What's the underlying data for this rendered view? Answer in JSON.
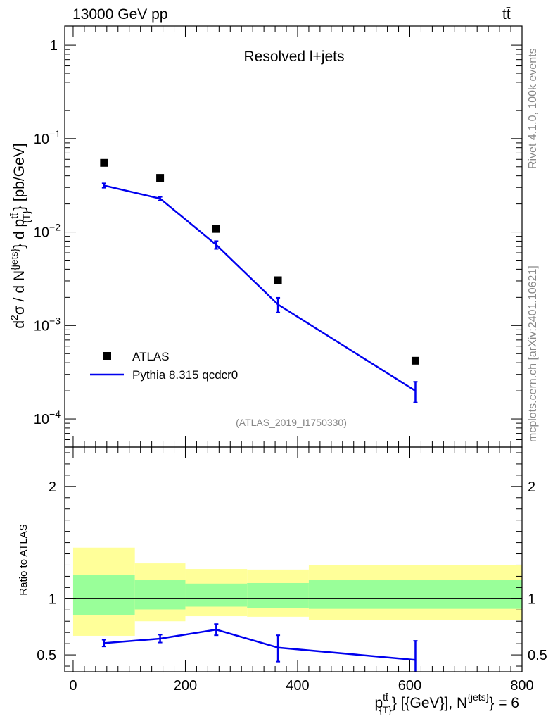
{
  "header": {
    "energy_label": "13000 GeV pp",
    "process_label": "tt̄"
  },
  "side_labels": {
    "rivet": "Rivet 4.1.0,  100k events",
    "mcplots": "mcplots.cern.ch [arXiv:2401.10621]"
  },
  "colors": {
    "mc": "#0000ee",
    "band_inner": "#99ff99",
    "band_outer": "#ffff99",
    "data": "#000000"
  },
  "chart_data": [
    {
      "type": "scatter",
      "panel": "main",
      "title": "Resolved l+jets",
      "analysis_id": "(ATLAS_2019_I1750330)",
      "ylabel": "d²σ / d N^{jets} d p_{T}^{tt̄} [pb/GeV]",
      "yscale": "log",
      "ylim": [
        5e-05,
        1.6
      ],
      "xlim": [
        -15,
        800
      ],
      "ytick_labels": [
        {
          "value": 1,
          "base": "1",
          "exp": ""
        },
        {
          "value": 0.1,
          "base": "10",
          "exp": "−1"
        },
        {
          "value": 0.01,
          "base": "10",
          "exp": "−2"
        },
        {
          "value": 0.001,
          "base": "10",
          "exp": "−3"
        },
        {
          "value": 0.0001,
          "base": "10",
          "exp": "−4"
        }
      ],
      "legend": {
        "position": "bottom-left",
        "entries": [
          {
            "label": "ATLAS",
            "style": "marker"
          },
          {
            "label": "Pythia 8.315 qcdcr0",
            "style": "line"
          }
        ]
      },
      "series": [
        {
          "name": "ATLAS",
          "x": [
            55,
            155,
            255,
            365,
            610
          ],
          "values": [
            0.055,
            0.038,
            0.0108,
            0.00305,
            0.00042
          ]
        },
        {
          "name": "Pythia 8.315 qcdcr0",
          "x": [
            55,
            155,
            255,
            365,
            610
          ],
          "values": [
            0.0315,
            0.0228,
            0.0073,
            0.00168,
            0.0002
          ],
          "err_low": [
            0.0298,
            0.0218,
            0.0066,
            0.00138,
            0.00015
          ],
          "err_high": [
            0.0332,
            0.0238,
            0.008,
            0.00198,
            0.00025
          ]
        }
      ]
    },
    {
      "type": "line",
      "panel": "ratio",
      "ylabel": "Ratio to ATLAS",
      "xlabel": "p_{T}^{tt̄} [{GeV}], N^{jets} = 6",
      "ylim": [
        0.35,
        2.35
      ],
      "xlim": [
        -15,
        800
      ],
      "xticks": [
        0,
        200,
        400,
        600,
        800
      ],
      "xtick_labels": [
        "0",
        "200",
        "400",
        "600",
        "800"
      ],
      "yticks": [
        0.5,
        1,
        2
      ],
      "ytick_labels": [
        "0.5",
        "1",
        "2"
      ],
      "bands": [
        {
          "x_low": 0,
          "x_high": 110,
          "inner": [
            0.855,
            1.215
          ],
          "outer": [
            0.67,
            1.455
          ]
        },
        {
          "x_low": 110,
          "x_high": 200,
          "inner": [
            0.905,
            1.165
          ],
          "outer": [
            0.8,
            1.315
          ]
        },
        {
          "x_low": 200,
          "x_high": 310,
          "inner": [
            0.93,
            1.135
          ],
          "outer": [
            0.845,
            1.265
          ]
        },
        {
          "x_low": 310,
          "x_high": 420,
          "inner": [
            0.92,
            1.14
          ],
          "outer": [
            0.84,
            1.26
          ]
        },
        {
          "x_low": 420,
          "x_high": 800,
          "inner": [
            0.91,
            1.165
          ],
          "outer": [
            0.81,
            1.3
          ]
        }
      ],
      "series": [
        {
          "name": "Pythia 8.315 qcdcr0",
          "x": [
            55,
            155,
            255,
            365,
            610
          ],
          "values": [
            0.605,
            0.645,
            0.725,
            0.565,
            0.455
          ],
          "err_low": [
            0.575,
            0.61,
            0.675,
            0.44,
            0.32
          ],
          "err_high": [
            0.635,
            0.68,
            0.775,
            0.675,
            0.625
          ]
        }
      ]
    }
  ]
}
